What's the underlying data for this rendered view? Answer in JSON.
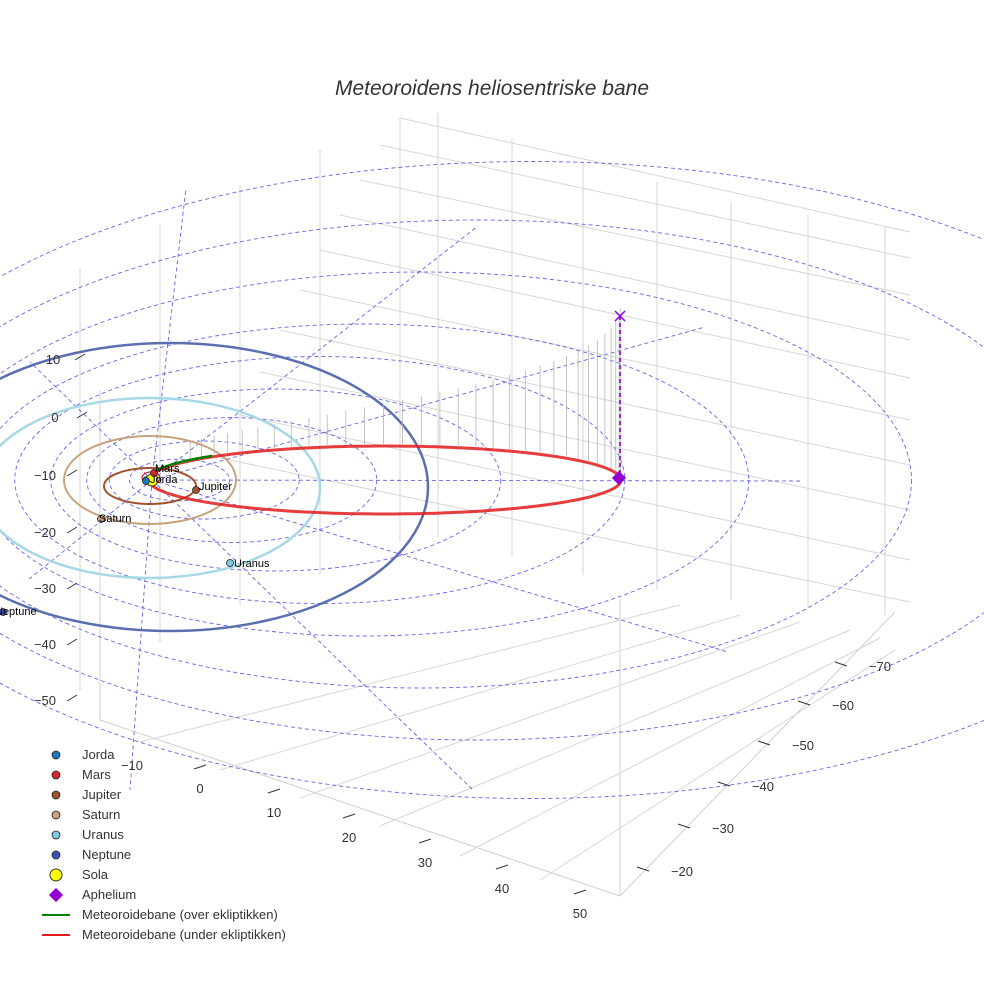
{
  "chart_data": {
    "type": "scatter",
    "dimensions": 3,
    "title": "Meteoroidens heliosentriske bane",
    "axes": {
      "x_ticks": [
        "0",
        "10",
        "20",
        "30",
        "40",
        "50"
      ],
      "y_ticks": [
        "−70",
        "−60",
        "−50",
        "−40",
        "−30",
        "−20"
      ],
      "z_ticks": [
        "10",
        "0",
        "−10",
        "−20",
        "−30",
        "−40",
        "−50"
      ],
      "extra_tick": "−10",
      "grid": true
    },
    "orbit": {
      "perihelion_au": 1.6,
      "aphelion_au": 63,
      "above_ecliptic_color": "#008000",
      "below_ecliptic_color": "#e31a1c",
      "above_fraction_start": 0.0,
      "above_fraction_end": 0.2
    },
    "planet_orbits_au": [
      {
        "name": "Jorda",
        "a": 1.0,
        "color": "#1f77b4"
      },
      {
        "name": "Mars",
        "a": 1.52,
        "color": "#d62728"
      },
      {
        "name": "Jupiter",
        "a": 5.2,
        "color": "#a0522d"
      },
      {
        "name": "Saturn",
        "a": 9.54,
        "color": "#c8a27c"
      },
      {
        "name": "Uranus",
        "a": 19.2,
        "color": "#a6d8e6"
      },
      {
        "name": "Neptune",
        "a": 30.1,
        "color": "#5b6fb0"
      }
    ],
    "labels": {
      "jorda": "Jorda",
      "mars": "Mars",
      "jupiter": "Jupiter",
      "saturn": "Saturn",
      "uranus": "Uranus",
      "neptune": "Neptune"
    },
    "legend": [
      {
        "label": "Jorda",
        "marker": "dot",
        "color": "#1f77b4"
      },
      {
        "label": "Mars",
        "marker": "dot",
        "color": "#d62728"
      },
      {
        "label": "Jupiter",
        "marker": "dot",
        "color": "#a0522d"
      },
      {
        "label": "Saturn",
        "marker": "dot",
        "color": "#c8a27c"
      },
      {
        "label": "Uranus",
        "marker": "dot",
        "color": "#7ec8e3"
      },
      {
        "label": "Neptune",
        "marker": "dot",
        "color": "#3f51b5"
      },
      {
        "label": "Sola",
        "marker": "sun",
        "color": "#ffff00"
      },
      {
        "label": "Aphelium",
        "marker": "diamond",
        "color": "#9400d3"
      },
      {
        "label": "Meteoroidebane (over ekliptikken)",
        "marker": "line",
        "color": "#008000"
      },
      {
        "label": "Meteoroidebane (under ekliptikken)",
        "marker": "line",
        "color": "#e31a1c"
      }
    ]
  }
}
